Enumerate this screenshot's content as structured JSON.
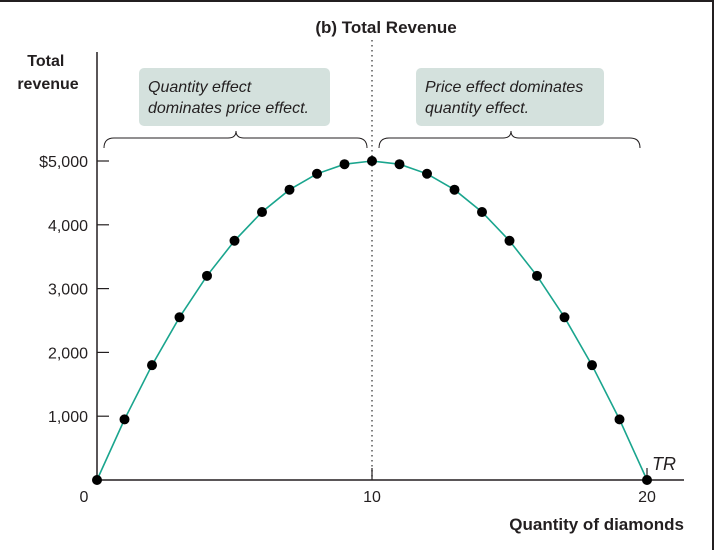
{
  "chart_data": {
    "type": "scatter",
    "title": "(b) Total Revenue",
    "ylabel_lines": [
      "Total",
      "revenue"
    ],
    "xlabel": "Quantity of diamonds",
    "x_ticks": [
      "0",
      "10",
      "20"
    ],
    "y_ticks": [
      "$5,000",
      "4,000",
      "3,000",
      "2,000",
      "1,000"
    ],
    "xlim": [
      0,
      20
    ],
    "ylim": [
      0,
      5000
    ],
    "series": [
      {
        "name": "TR",
        "x": [
          0,
          1,
          2,
          3,
          4,
          5,
          6,
          7,
          8,
          9,
          10,
          11,
          12,
          13,
          14,
          15,
          16,
          17,
          18,
          19,
          20
        ],
        "y": [
          0,
          950,
          1800,
          2550,
          3200,
          3750,
          4200,
          4550,
          4800,
          4950,
          5000,
          4950,
          4800,
          4550,
          4200,
          3750,
          3200,
          2550,
          1800,
          950,
          0
        ]
      }
    ],
    "annotations": [
      {
        "lines": [
          "Quantity effect",
          "dominates price effect."
        ]
      },
      {
        "lines": [
          "Price effect dominates",
          "quantity effect."
        ]
      }
    ],
    "colors": {
      "curve": "#1aa58e",
      "points": "#000000",
      "callout": "#d4e1dd",
      "axis": "#231f20",
      "divider": "#555555"
    },
    "grid": false
  }
}
